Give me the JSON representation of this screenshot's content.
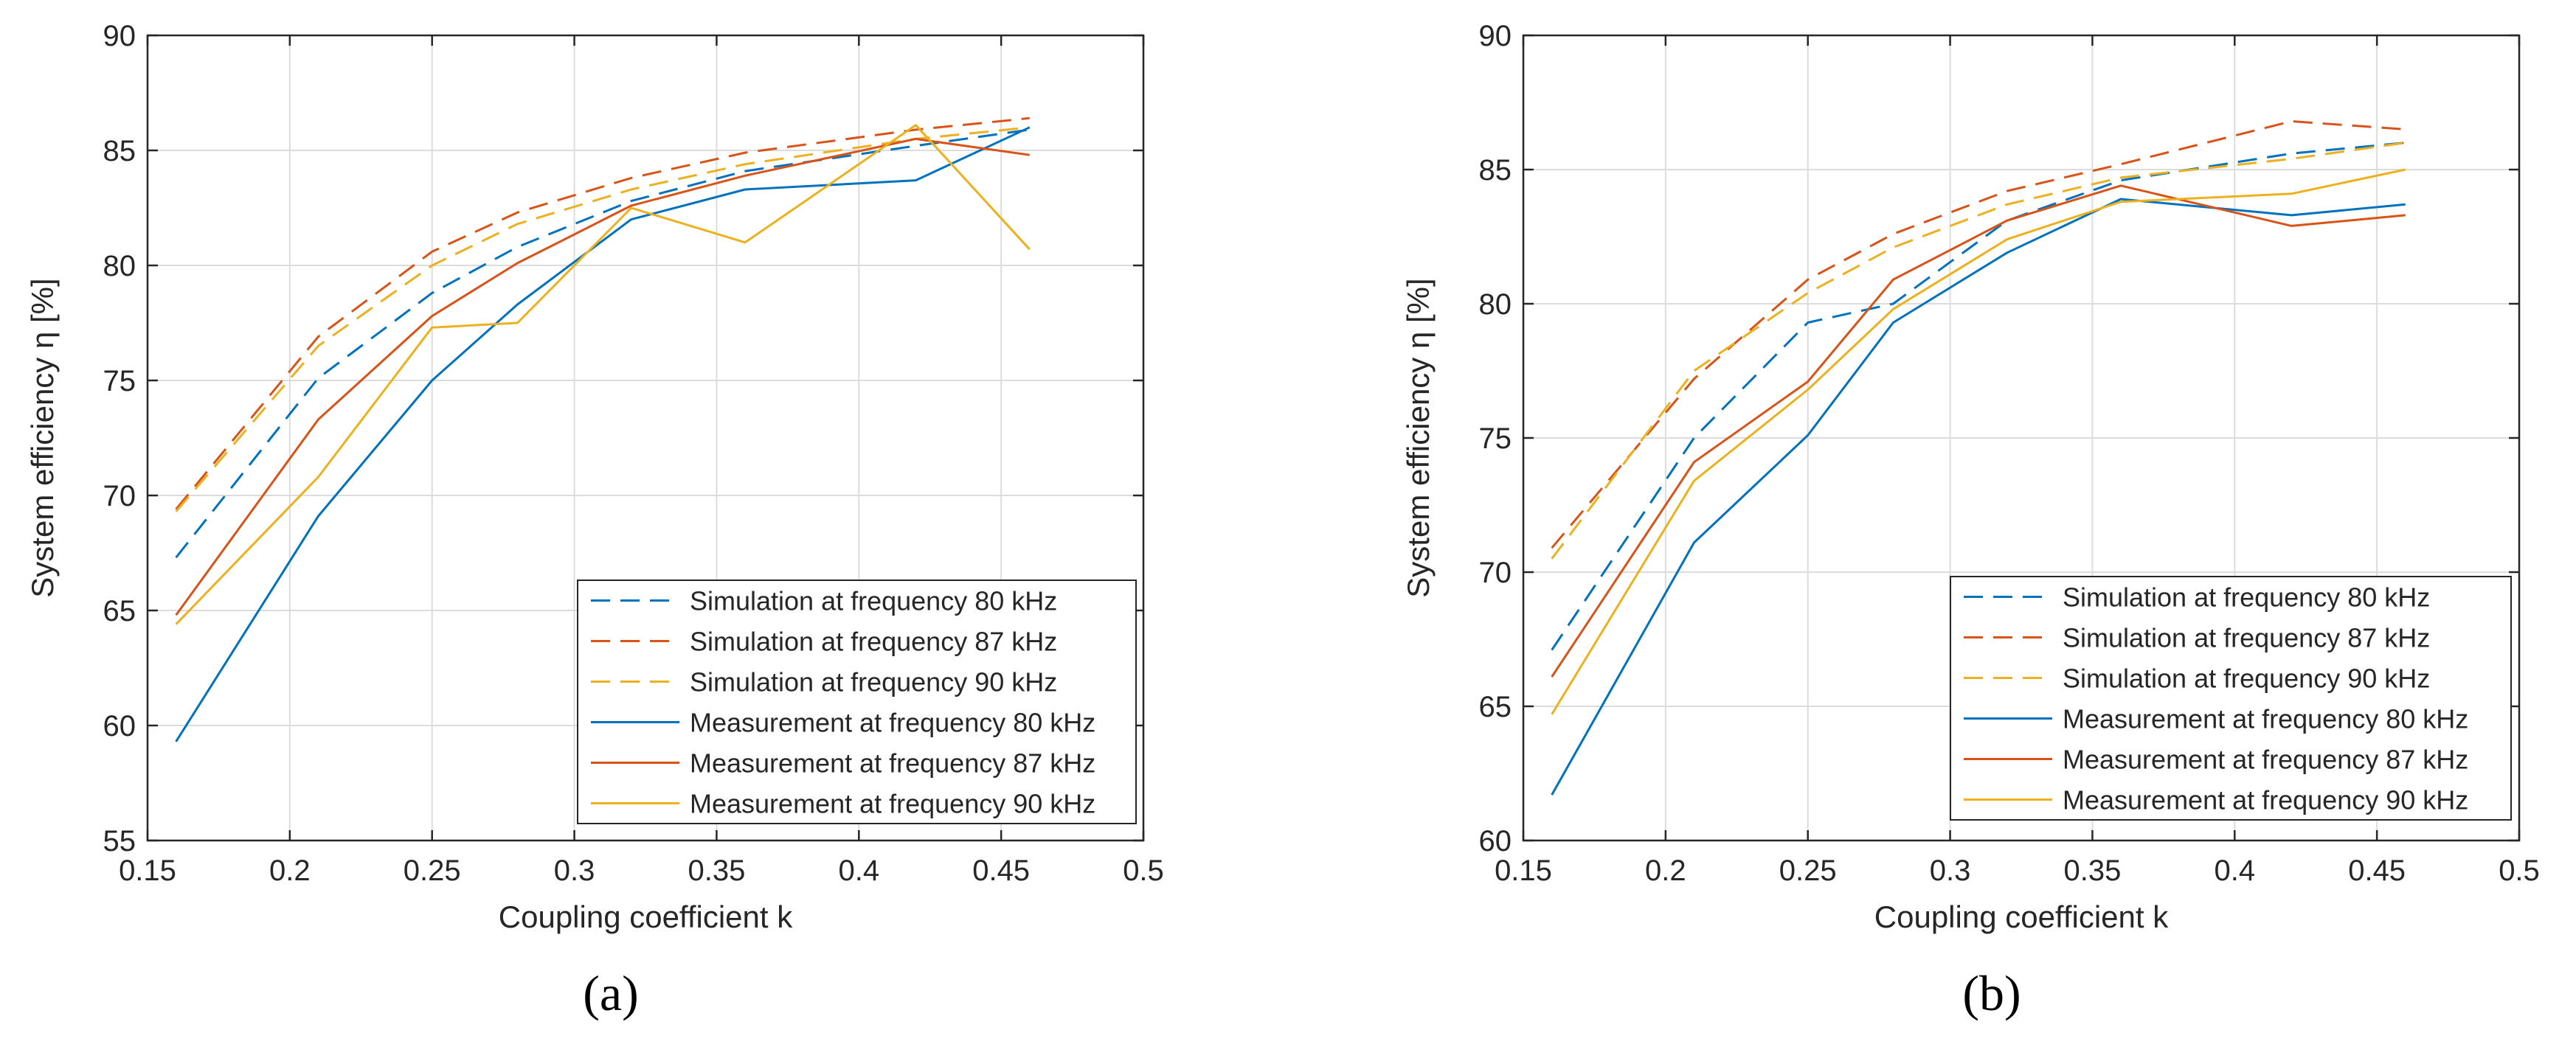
{
  "colors": {
    "series_80": "#0072BD",
    "series_87": "#D95319",
    "series_90": "#EDB120",
    "grid": "#dcdcdc",
    "axis": "#262626"
  },
  "chart_data": [
    {
      "type": "line",
      "panel_label": "(a)",
      "xlabel": "Coupling coefficient k",
      "ylabel": "System efficiency η [%]",
      "xlim": [
        0.15,
        0.5
      ],
      "ylim": [
        55,
        90
      ],
      "xticks": [
        0.15,
        0.2,
        0.25,
        0.3,
        0.35,
        0.4,
        0.45,
        0.5
      ],
      "xtick_labels": [
        "0.15",
        "0.2",
        "0.25",
        "0.3",
        "0.35",
        "0.4",
        "0.45",
        "0.5"
      ],
      "yticks": [
        55,
        60,
        65,
        70,
        75,
        80,
        85,
        90
      ],
      "ytick_labels": [
        "55",
        "60",
        "65",
        "70",
        "75",
        "80",
        "85",
        "90"
      ],
      "grid": true,
      "legend_position": "bottom-right",
      "series": [
        {
          "name": "Simulation at frequency 80 kHz",
          "style": "dashed",
          "color": "#0072BD",
          "x": [
            0.16,
            0.21,
            0.25,
            0.28,
            0.32,
            0.36,
            0.42,
            0.46
          ],
          "y": [
            67.3,
            75.1,
            78.8,
            80.8,
            82.8,
            84.1,
            85.2,
            85.9
          ]
        },
        {
          "name": "Simulation at frequency 87 kHz",
          "style": "dashed",
          "color": "#D95319",
          "x": [
            0.16,
            0.21,
            0.25,
            0.28,
            0.32,
            0.36,
            0.42,
            0.46
          ],
          "y": [
            69.4,
            76.9,
            80.6,
            82.3,
            83.8,
            84.9,
            85.9,
            86.4
          ]
        },
        {
          "name": "Simulation at frequency 90 kHz",
          "style": "dashed",
          "color": "#EDB120",
          "x": [
            0.16,
            0.21,
            0.25,
            0.28,
            0.32,
            0.36,
            0.42,
            0.46
          ],
          "y": [
            69.3,
            76.5,
            80.0,
            81.8,
            83.3,
            84.4,
            85.5,
            86.0
          ]
        },
        {
          "name": "Measurement at frequency 80 kHz",
          "style": "solid",
          "color": "#0072BD",
          "x": [
            0.16,
            0.21,
            0.25,
            0.28,
            0.32,
            0.36,
            0.42,
            0.46
          ],
          "y": [
            59.3,
            69.1,
            75.0,
            78.3,
            82.0,
            83.3,
            83.7,
            86.0
          ]
        },
        {
          "name": "Measurement at frequency 87 kHz",
          "style": "solid",
          "color": "#D95319",
          "x": [
            0.16,
            0.21,
            0.25,
            0.28,
            0.32,
            0.36,
            0.42,
            0.46
          ],
          "y": [
            64.8,
            73.3,
            77.8,
            80.1,
            82.6,
            83.9,
            85.5,
            84.8
          ]
        },
        {
          "name": "Measurement at frequency 90 kHz",
          "style": "solid",
          "color": "#EDB120",
          "x": [
            0.16,
            0.21,
            0.25,
            0.28,
            0.32,
            0.36,
            0.42,
            0.46
          ],
          "y": [
            64.4,
            70.8,
            77.3,
            77.5,
            82.5,
            81.0,
            86.1,
            80.7
          ]
        }
      ]
    },
    {
      "type": "line",
      "panel_label": "(b)",
      "xlabel": "Coupling coefficient k",
      "ylabel": "System efficiency η [%]",
      "xlim": [
        0.15,
        0.5
      ],
      "ylim": [
        60,
        90
      ],
      "xticks": [
        0.15,
        0.2,
        0.25,
        0.3,
        0.35,
        0.4,
        0.45,
        0.5
      ],
      "xtick_labels": [
        "0.15",
        "0.2",
        "0.25",
        "0.3",
        "0.35",
        "0.4",
        "0.45",
        "0.5"
      ],
      "yticks": [
        60,
        65,
        70,
        75,
        80,
        85,
        90
      ],
      "ytick_labels": [
        "60",
        "65",
        "70",
        "75",
        "80",
        "85",
        "90"
      ],
      "grid": true,
      "legend_position": "bottom-right",
      "series": [
        {
          "name": "Simulation at frequency 80 kHz",
          "style": "dashed",
          "color": "#0072BD",
          "x": [
            0.16,
            0.21,
            0.25,
            0.28,
            0.32,
            0.36,
            0.42,
            0.46
          ],
          "y": [
            67.1,
            75.0,
            79.3,
            80.0,
            83.1,
            84.6,
            85.6,
            86.0
          ]
        },
        {
          "name": "Simulation at frequency 87 kHz",
          "style": "dashed",
          "color": "#D95319",
          "x": [
            0.16,
            0.21,
            0.25,
            0.28,
            0.32,
            0.36,
            0.42,
            0.46
          ],
          "y": [
            70.9,
            77.2,
            80.9,
            82.6,
            84.2,
            85.2,
            86.8,
            86.5
          ]
        },
        {
          "name": "Simulation at frequency 90 kHz",
          "style": "dashed",
          "color": "#EDB120",
          "x": [
            0.16,
            0.21,
            0.25,
            0.28,
            0.32,
            0.36,
            0.42,
            0.46
          ],
          "y": [
            70.5,
            77.5,
            80.4,
            82.1,
            83.7,
            84.7,
            85.4,
            86.0
          ]
        },
        {
          "name": "Measurement at frequency 80 kHz",
          "style": "solid",
          "color": "#0072BD",
          "x": [
            0.16,
            0.21,
            0.25,
            0.28,
            0.32,
            0.36,
            0.42,
            0.46
          ],
          "y": [
            61.7,
            71.1,
            75.1,
            79.3,
            81.9,
            83.9,
            83.3,
            83.7
          ]
        },
        {
          "name": "Measurement at frequency 87 kHz",
          "style": "solid",
          "color": "#D95319",
          "x": [
            0.16,
            0.21,
            0.25,
            0.28,
            0.32,
            0.36,
            0.42,
            0.46
          ],
          "y": [
            66.1,
            74.1,
            77.1,
            80.9,
            83.1,
            84.4,
            82.9,
            83.3
          ]
        },
        {
          "name": "Measurement at frequency 90 kHz",
          "style": "solid",
          "color": "#EDB120",
          "x": [
            0.16,
            0.21,
            0.25,
            0.28,
            0.32,
            0.36,
            0.42,
            0.46
          ],
          "y": [
            64.7,
            73.4,
            76.8,
            79.8,
            82.4,
            83.8,
            84.1,
            85.0
          ]
        }
      ]
    }
  ]
}
